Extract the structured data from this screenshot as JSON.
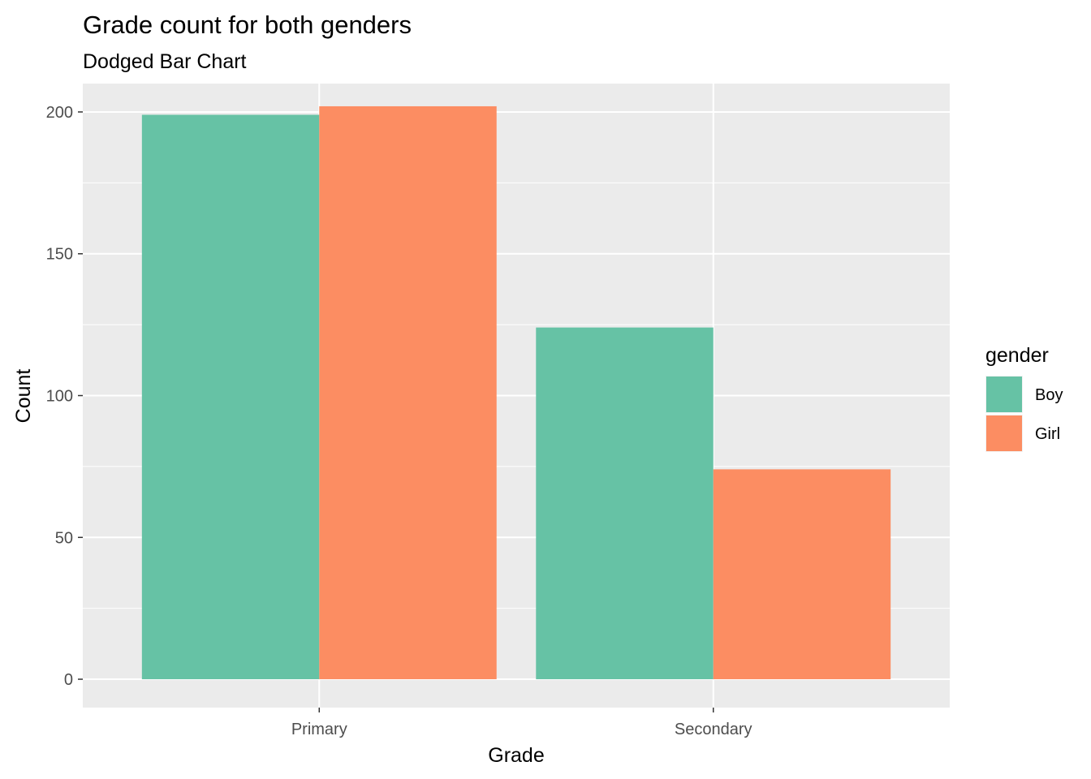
{
  "chart_data": {
    "type": "bar",
    "title": "Grade count for both genders",
    "subtitle": "Dodged Bar Chart",
    "xlabel": "Grade",
    "ylabel": "Count",
    "categories": [
      "Primary",
      "Secondary"
    ],
    "series": [
      {
        "name": "Boy",
        "color": "#66c2a5",
        "values": [
          199,
          124
        ]
      },
      {
        "name": "Girl",
        "color": "#fc8d62",
        "values": [
          202,
          74
        ]
      }
    ],
    "ylim": [
      -10,
      210
    ],
    "yticks": [
      0,
      50,
      100,
      150,
      200
    ],
    "legend": {
      "title": "gender",
      "position": "right"
    },
    "grid": true,
    "panel_background": "#ebebeb",
    "grid_color": "#ffffff"
  }
}
